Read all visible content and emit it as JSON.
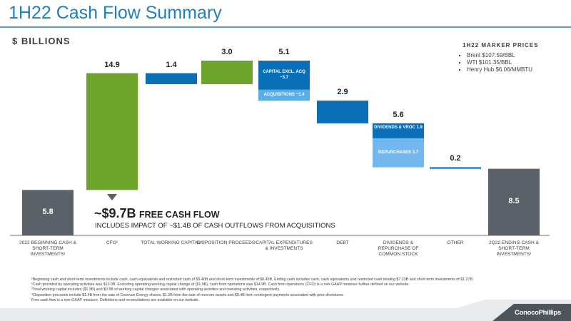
{
  "header": {
    "title": "1H22 Cash Flow Summary",
    "units": "$ BILLIONS"
  },
  "marker_prices": {
    "title": "1H22 MARKER PRICES",
    "items": [
      "Brent $107.59/BBL",
      "WTI $101.35/BBL",
      "Henry Hub $6.06/MMBTU"
    ]
  },
  "chart_data": {
    "type": "waterfall",
    "categories": [
      "2022 BEGINNING CASH & SHORT-TERM INVESTMENTS¹",
      "CFO²",
      "TOTAL WORKING CAPITAL³",
      "DISPOSITION PROCEEDS⁴",
      "CAPITAL EXPENDITURES & INVESTMENTS",
      "DEBT",
      "DIVIDENDS & REPURCHASE OF COMMON STOCK",
      "OTHER",
      "2Q22 ENDING CASH & SHORT-TERM INVESTMENTS¹"
    ],
    "values": [
      5.8,
      14.9,
      -1.4,
      3.0,
      -5.1,
      -2.9,
      -5.6,
      -0.2,
      8.5
    ],
    "value_labels": [
      "5.8",
      "14.9",
      "1.4",
      "3.0",
      "5.1",
      "2.9",
      "5.6",
      "0.2",
      "8.5"
    ],
    "total_indices": [
      0,
      8
    ],
    "colors": [
      "#5b6168",
      "#6fa42c",
      "#0a6fb7",
      "#6fa42c",
      "#0a6fb7",
      "#0a6fb7",
      "#0a6fb7",
      "#0a6fb7",
      "#5b6168"
    ],
    "segments": [
      null,
      null,
      null,
      null,
      [
        {
          "label": "CAPITAL EXCL. ACQ ~3.7",
          "value": -3.7,
          "color": "#0a6fb7"
        },
        {
          "label": "ACQUISITIONS ~1.4",
          "value": -1.4,
          "color": "#5aaee6"
        }
      ],
      null,
      [
        {
          "label": "DIVIDENDS & VROC 1.9",
          "value": -1.9,
          "color": "#0a6fb7"
        },
        {
          "label": "REPURCHASES 3.7",
          "value": -3.7,
          "color": "#72b8ee"
        }
      ],
      null,
      null
    ]
  },
  "fcf": {
    "headline": "~$9.7B",
    "text": "FREE CASH FLOW",
    "note": "INCLUDES IMPACT OF ~$1.4B OF CASH OUTFLOWS FROM ACQUISITIONS"
  },
  "footnotes": [
    "¹Beginning cash and short-term investments include cash, cash equivalents and restricted cash of $5.40B and short-term investments of $0.45B. Ending cash includes cash, cash equivalents and restricted cash totaling $7.23B and short-term investments of $1.27B.",
    "²Cash provided by operating activities was $13.0B. Excluding operating working capital change of ($1.9B), cash from operations was $14.9B. Cash from operations (CFO) is a non-GAAP measure further defined on our website.",
    "³Total working capital includes ($1.9B) and $0.5B of working capital changes associated with operating activities and investing activities, respectively.",
    "⁴Disposition proceeds include $1.4B from the sale of Cenovus Energy shares, $1.2B from the sale of noncore assets and $0.4B from contingent payments associated with prior divestures.",
    "Free cash flow is a non-GAAP measure. Definitions and reconciliations are available on our website."
  ],
  "logo": "ConocoPhillips"
}
